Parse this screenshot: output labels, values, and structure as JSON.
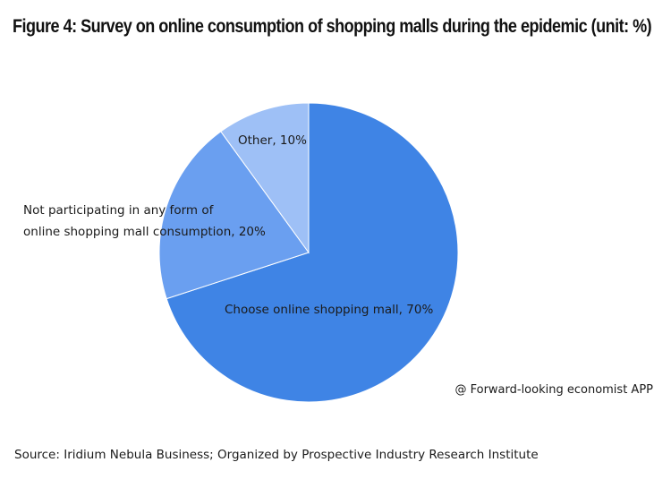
{
  "chart_data": {
    "type": "pie",
    "title": "Figure 4: Survey on online consumption of shopping malls during the epidemic  (unit:  %)",
    "slices": [
      {
        "label_lines": [
          "Choose online shopping mall, 70%"
        ],
        "value": 70,
        "color": "#3f84e5"
      },
      {
        "label_lines": [
          "Not participating in any form of",
          "online shopping mall consumption, 20%"
        ],
        "value": 20,
        "color": "#6a9ff0"
      },
      {
        "label_lines": [
          "Other, 10%"
        ],
        "value": 10,
        "color": "#9ec0f6"
      }
    ],
    "start": "12 o'clock",
    "direction": "clockwise",
    "legend": "none"
  },
  "credit": "@ Forward-looking economist APP",
  "source": "Source: Iridium Nebula Business;   Organized by Prospective Industry Research Institute"
}
